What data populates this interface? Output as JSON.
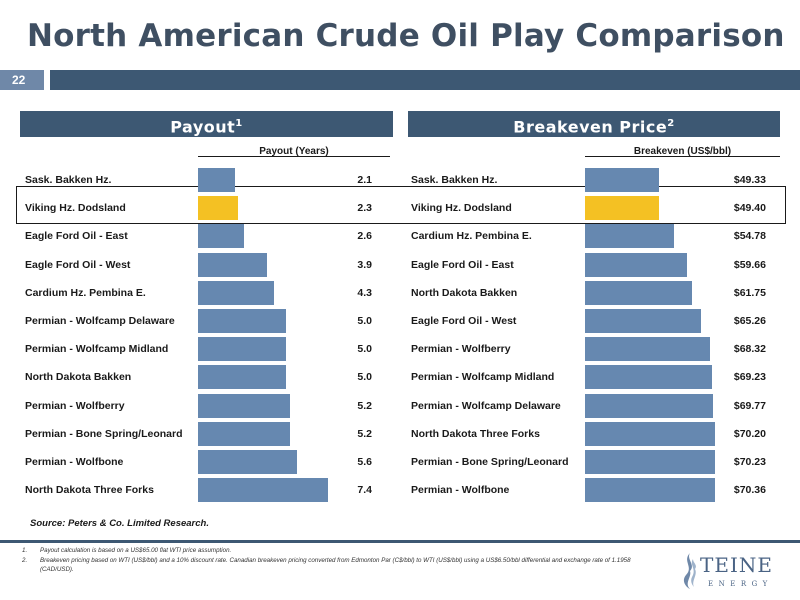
{
  "page": {
    "title": "North American Crude Oil Play Comparison",
    "page_number": "22"
  },
  "chart_data": [
    {
      "type": "bar",
      "title": "Payout",
      "title_sup": "1",
      "xlabel": "Payout (Years)",
      "orientation": "horizontal",
      "categories": [
        "Sask. Bakken Hz.",
        "Viking Hz. Dodsland",
        "Eagle Ford Oil - East",
        "Eagle Ford Oil - West",
        "Cardium Hz. Pembina E.",
        "Permian - Wolfcamp Delaware",
        "Permian - Wolfcamp Midland",
        "North Dakota Bakken",
        "Permian - Wolfberry",
        "Permian - Bone Spring/Leonard",
        "Permian - Wolfbone",
        "North Dakota Three Forks"
      ],
      "values": [
        2.1,
        2.3,
        2.6,
        3.9,
        4.3,
        5.0,
        5.0,
        5.0,
        5.2,
        5.2,
        5.6,
        7.4
      ],
      "value_labels": [
        "2.1",
        "2.3",
        "2.6",
        "3.9",
        "4.3",
        "5.0",
        "5.0",
        "5.0",
        "5.2",
        "5.2",
        "5.6",
        "7.4"
      ],
      "highlight_index": 1
    },
    {
      "type": "bar",
      "title": "Breakeven Price",
      "title_sup": "2",
      "xlabel": "Breakeven (US$/bbl)",
      "orientation": "horizontal",
      "categories": [
        "Sask. Bakken Hz.",
        "Viking Hz. Dodsland",
        "Cardium Hz. Pembina E.",
        "Eagle Ford Oil - East",
        "North Dakota Bakken",
        "Eagle Ford Oil - West",
        "Permian - Wolfberry",
        "Permian - Wolfcamp Midland",
        "Permian - Wolfcamp Delaware",
        "North Dakota Three Forks",
        "Permian - Bone Spring/Leonard",
        "Permian - Wolfbone"
      ],
      "values": [
        49.33,
        49.4,
        54.78,
        59.66,
        61.75,
        65.26,
        68.32,
        69.23,
        69.77,
        70.2,
        70.23,
        70.36
      ],
      "value_labels": [
        "$49.33",
        "$49.40",
        "$54.78",
        "$59.66",
        "$61.75",
        "$65.26",
        "$68.32",
        "$69.23",
        "$69.77",
        "$70.20",
        "$70.23",
        "$70.36"
      ],
      "highlight_index": 1
    }
  ],
  "colors": {
    "bar": "#6688b0",
    "highlight": "#f4c123",
    "header": "#3d5873"
  },
  "source": "Source: Peters & Co. Limited Research.",
  "footnotes": [
    {
      "num": "1.",
      "text": "Payout calculation is based on a US$65.00 flat WTI price assumption."
    },
    {
      "num": "2.",
      "text": "Breakeven pricing based on WTI (US$/bbl) and a 10% discount rate. Canadian breakeven pricing converted from Edmonton Par (C$/bbl) to WTI (US$/bbl) using a US$6.50/bbl differential and exchange rate of 1.1958 (CAD/USD)."
    }
  ],
  "logo": {
    "word": "TEINE",
    "sub": "ENERGY"
  }
}
